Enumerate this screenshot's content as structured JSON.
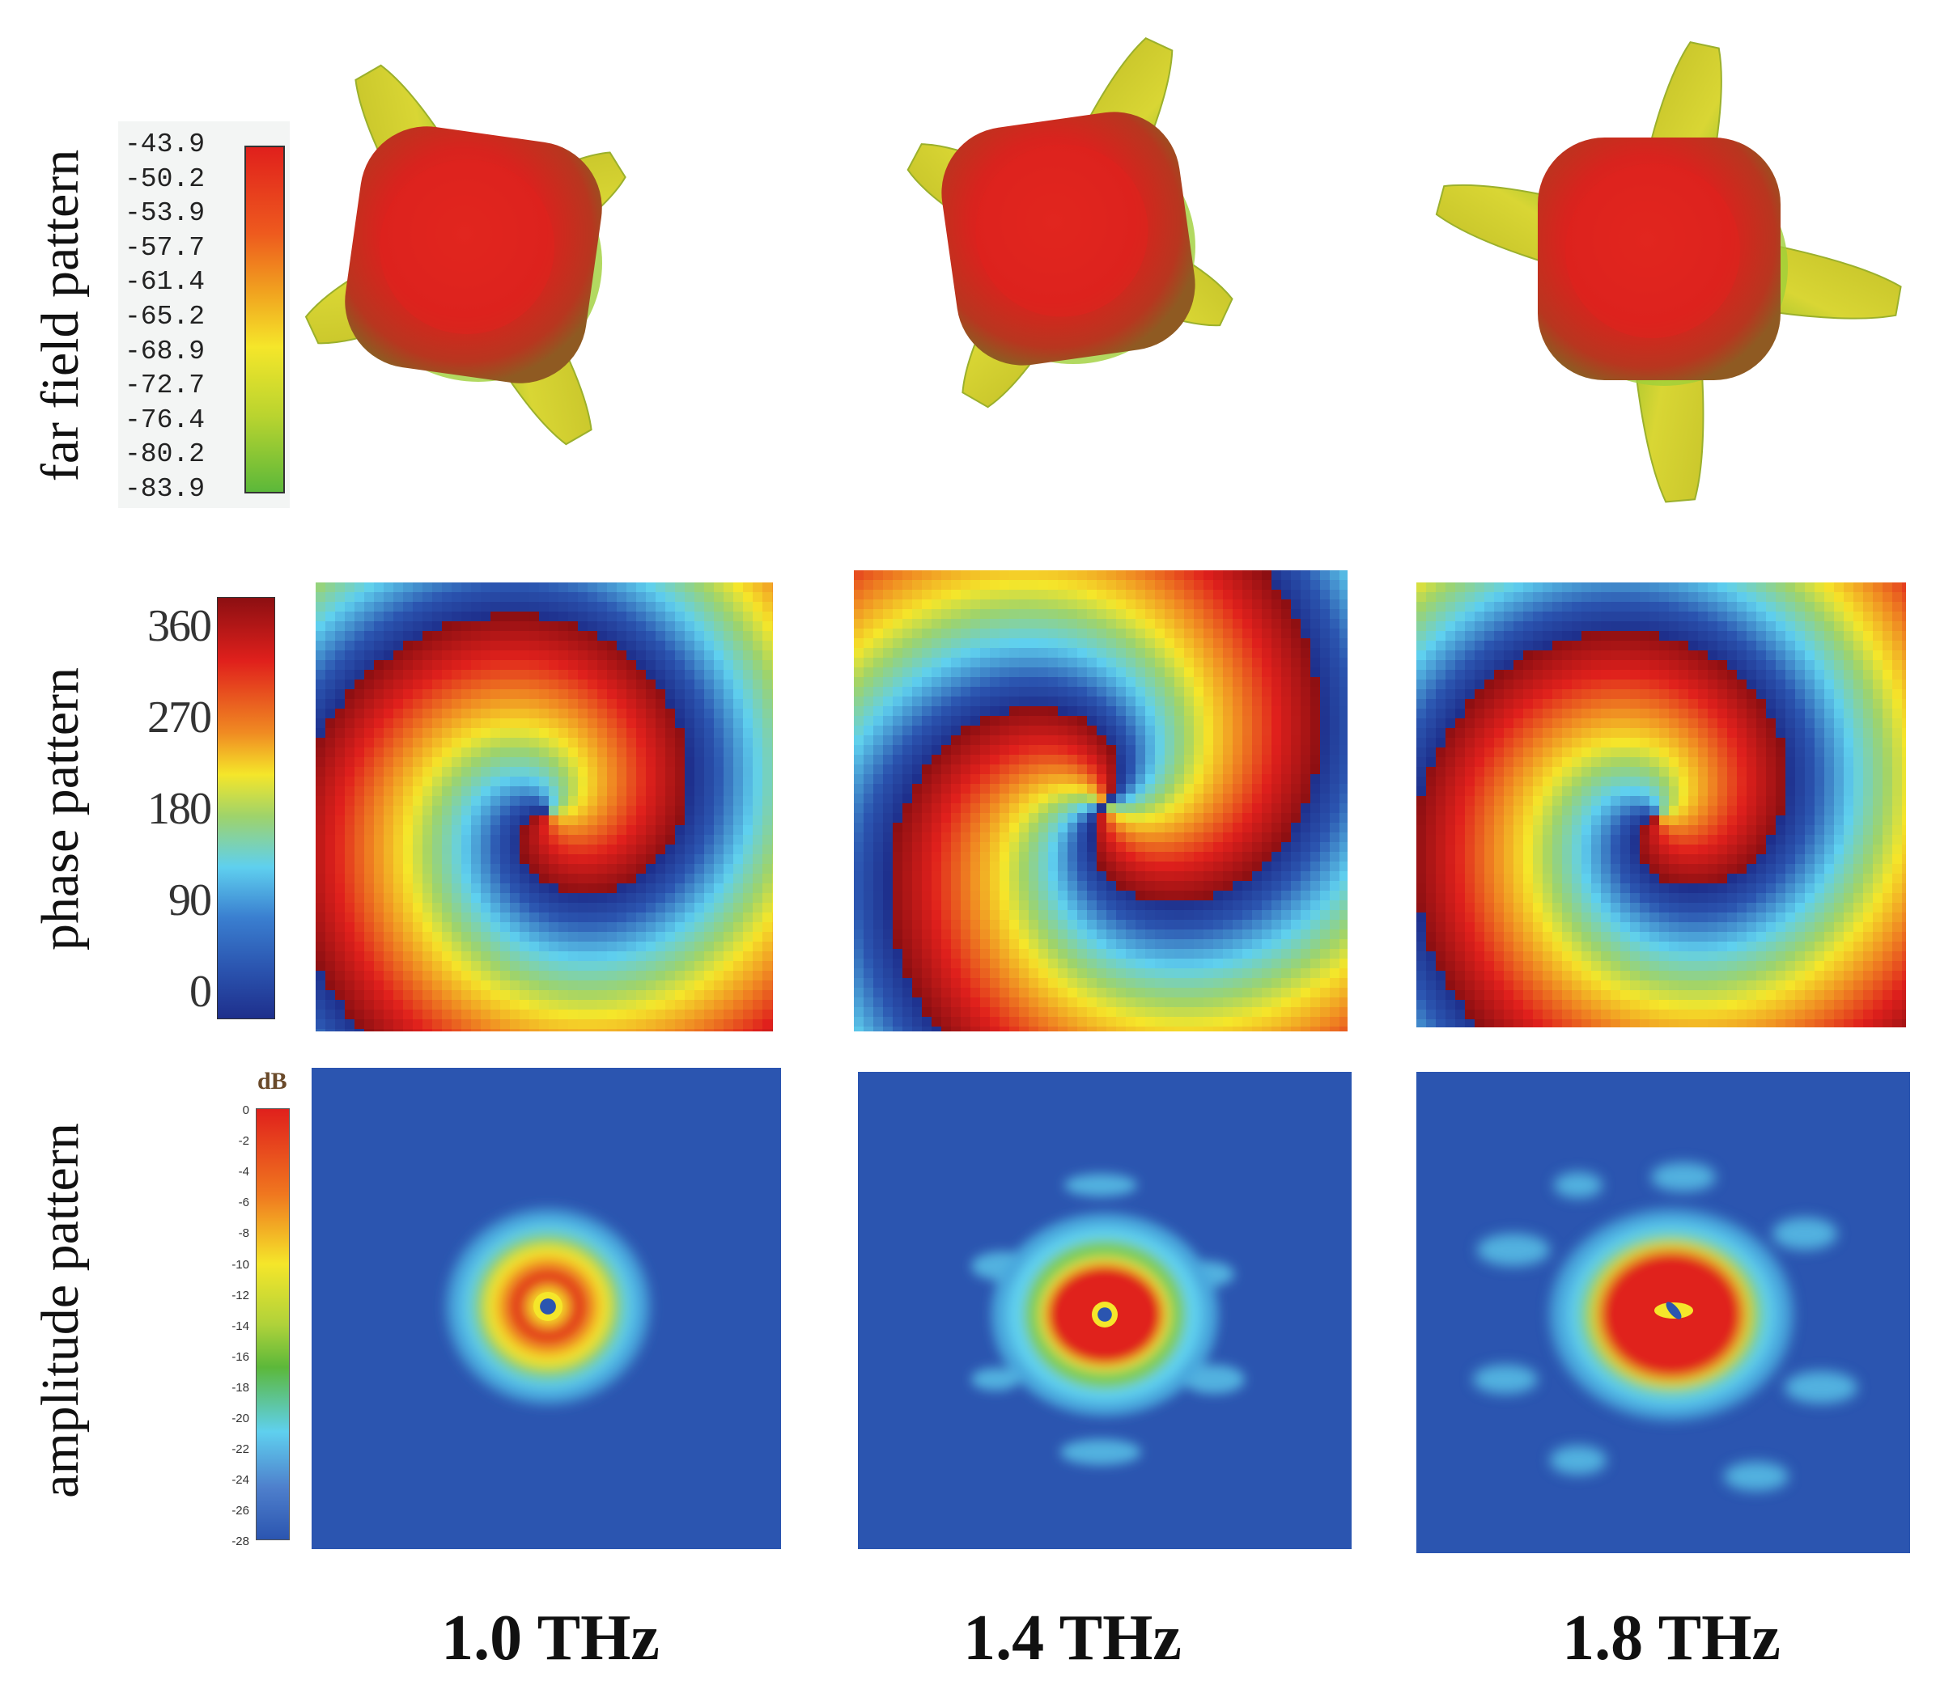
{
  "rows": {
    "far_field": "far field pattern",
    "phase": "phase pattern",
    "amplitude": "amplitude pattern"
  },
  "frequencies": [
    "1.0 THz",
    "1.4 THz",
    "1.8 THz"
  ],
  "far_field_colorbar": {
    "ticks": [
      "-43.9",
      "-50.2",
      "-53.9",
      "-57.7",
      "-61.4",
      "-65.2",
      "-68.9",
      "-72.7",
      "-76.4",
      "-80.2",
      "-83.9"
    ]
  },
  "phase_colorbar": {
    "ticks": [
      "360",
      "270",
      "180",
      "90",
      "0"
    ]
  },
  "amplitude_colorbar": {
    "unit": "dB",
    "ticks": [
      "0",
      "-2",
      "-4",
      "-6",
      "-8",
      "-10",
      "-12",
      "-14",
      "-16",
      "-18",
      "-20",
      "-22",
      "-24",
      "-26",
      "-28"
    ]
  },
  "colors": {
    "red": "#e0201c",
    "yellow": "#f5e62a",
    "green": "#5cb83a",
    "cyan": "#5fd0ef",
    "blue": "#2b55b0",
    "dark_red": "#8c0f12",
    "navy": "#1e2f8c"
  }
}
